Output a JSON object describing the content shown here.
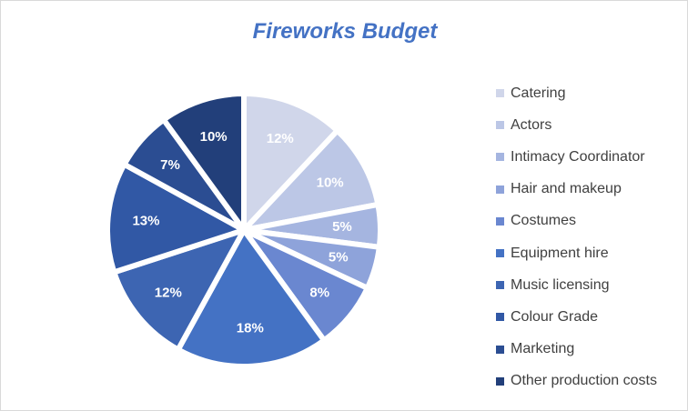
{
  "chart_data": {
    "type": "pie",
    "title": "Fireworks Budget",
    "legend_position": "right",
    "categories": [
      "Catering",
      "Actors",
      "Intimacy Coordinator",
      "Hair and makeup",
      "Costumes",
      "Equipment hire",
      "Music licensing",
      "Colour Grade",
      "Marketing",
      "Other production costs"
    ],
    "values": [
      12,
      10,
      5,
      5,
      8,
      18,
      12,
      13,
      7,
      10
    ],
    "data_labels": [
      "12%",
      "10%",
      "5%",
      "5%",
      "8%",
      "18%",
      "12%",
      "13%",
      "7%",
      "10%"
    ],
    "colors": [
      "#d0d6ea",
      "#bcc7e6",
      "#a5b5e0",
      "#8ea3da",
      "#6a87d0",
      "#4472c4",
      "#3d65b2",
      "#3158a5",
      "#2b4d92",
      "#223f7a"
    ],
    "label_colors": [
      "#ffffff",
      "#ffffff",
      "#ffffff",
      "#ffffff",
      "#ffffff",
      "#ffffff",
      "#ffffff",
      "#ffffff",
      "#ffffff",
      "#ffffff"
    ]
  }
}
